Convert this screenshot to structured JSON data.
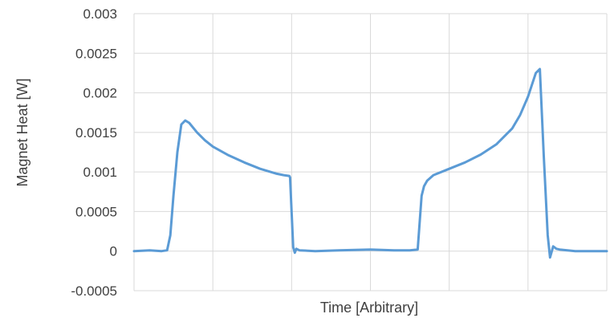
{
  "chart_data": {
    "type": "line",
    "title": "",
    "xlabel": "Time [Arbitrary]",
    "ylabel": "Magnet Heat [W]",
    "xlim": [
      0,
      6
    ],
    "ylim": [
      -0.0005,
      0.003
    ],
    "y_ticks": [
      {
        "value": -0.0005,
        "label": "-0.0005"
      },
      {
        "value": 0,
        "label": "0"
      },
      {
        "value": 0.0005,
        "label": "0.0005"
      },
      {
        "value": 0.001,
        "label": "0.001"
      },
      {
        "value": 0.0015,
        "label": "0.0015"
      },
      {
        "value": 0.002,
        "label": "0.002"
      },
      {
        "value": 0.0025,
        "label": "0.0025"
      },
      {
        "value": 0.003,
        "label": "0.003"
      }
    ],
    "x_gridlines": [
      1,
      2,
      3,
      4,
      5
    ],
    "grid": true,
    "legend": "none",
    "series_color": "#5B9BD5",
    "series": [
      {
        "name": "",
        "x": [
          0,
          0.2,
          0.35,
          0.42,
          0.46,
          0.5,
          0.55,
          0.6,
          0.65,
          0.7,
          0.8,
          0.9,
          1.0,
          1.2,
          1.4,
          1.6,
          1.8,
          1.9,
          1.97,
          1.98,
          2.0,
          2.02,
          2.04,
          2.06,
          2.1,
          2.3,
          2.6,
          3.0,
          3.3,
          3.5,
          3.6,
          3.62,
          3.65,
          3.68,
          3.72,
          3.8,
          4.0,
          4.2,
          4.4,
          4.6,
          4.8,
          4.9,
          5.0,
          5.05,
          5.1,
          5.15,
          5.2,
          5.25,
          5.28,
          5.32,
          5.36,
          5.4,
          5.6,
          5.8,
          6.0
        ],
        "y": [
          0,
          1e-05,
          0,
          1e-05,
          0.0002,
          0.0007,
          0.00125,
          0.0016,
          0.00165,
          0.00162,
          0.0015,
          0.0014,
          0.00132,
          0.00121,
          0.00112,
          0.00104,
          0.00098,
          0.00096,
          0.00095,
          0.00093,
          0.0005,
          5e-05,
          -2e-05,
          3e-05,
          1e-05,
          0,
          1e-05,
          2e-05,
          1e-05,
          1e-05,
          2e-05,
          0.0003,
          0.0007,
          0.00082,
          0.00089,
          0.00096,
          0.00104,
          0.00112,
          0.00122,
          0.00135,
          0.00155,
          0.00172,
          0.00195,
          0.0021,
          0.00225,
          0.0023,
          0.0012,
          0.0002,
          -8e-05,
          6e-05,
          3e-05,
          2e-05,
          0,
          0,
          0
        ]
      }
    ]
  }
}
